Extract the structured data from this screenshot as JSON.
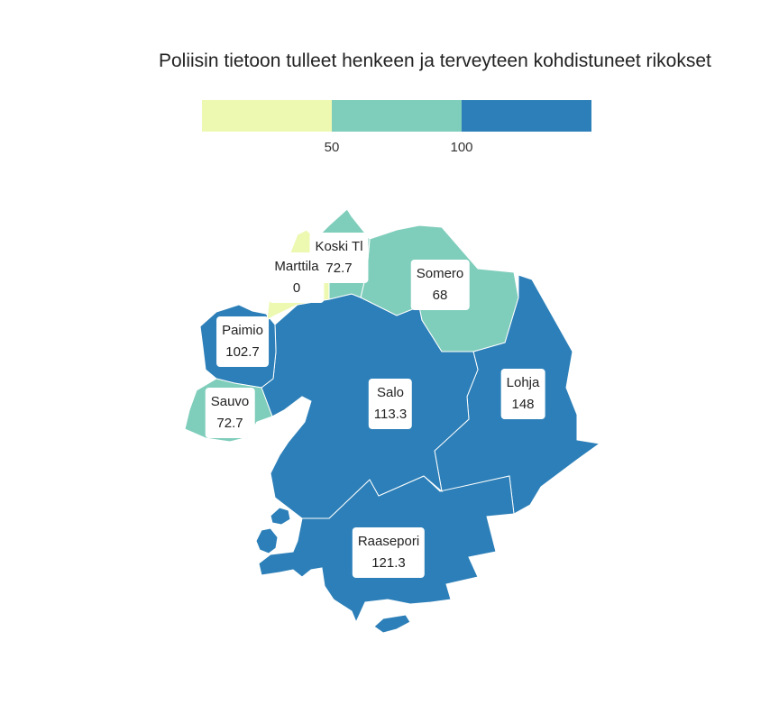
{
  "title": "Poliisin tietoon tulleet henkeen ja terveyteen kohdistuneet rikokset",
  "legend": {
    "bins": [
      {
        "color": "#edf8b1"
      },
      {
        "color": "#7fcdbb"
      },
      {
        "color": "#2c7fb8"
      }
    ],
    "ticks": [
      "50",
      "100"
    ]
  },
  "regions": [
    {
      "name": "Salo",
      "value": "113.3",
      "color": "#2c7fb8"
    },
    {
      "name": "Lohja",
      "value": "148",
      "color": "#2c7fb8"
    },
    {
      "name": "Raasepori",
      "value": "121.3",
      "color": "#2c7fb8"
    },
    {
      "name": "Paimio",
      "value": "102.7",
      "color": "#2c7fb8"
    },
    {
      "name": "Somero",
      "value": "68",
      "color": "#7fcdbb"
    },
    {
      "name": "Koski Tl",
      "value": "72.7",
      "color": "#7fcdbb"
    },
    {
      "name": "Sauvo",
      "value": "72.7",
      "color": "#7fcdbb"
    },
    {
      "name": "Marttila",
      "value": "0",
      "color": "#edf8b1"
    }
  ]
}
